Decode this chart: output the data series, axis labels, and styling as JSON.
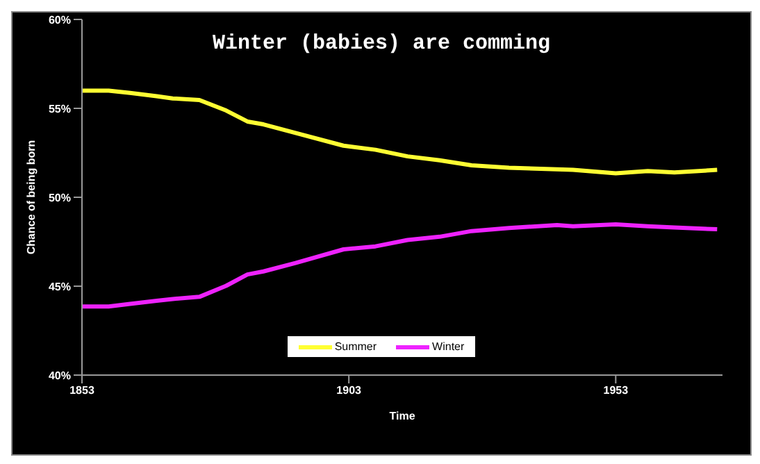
{
  "chart_data": {
    "type": "line",
    "title": "Winter (babies) are comming",
    "xlabel": "Time",
    "ylabel": "Chance of being born",
    "x": [
      1853,
      1858,
      1862,
      1867,
      1870,
      1875,
      1880,
      1884,
      1887,
      1893,
      1902,
      1908,
      1914,
      1920,
      1926,
      1933,
      1942,
      1945,
      1953,
      1959,
      1964,
      1972
    ],
    "series": [
      {
        "name": "Summer",
        "color": "#ffff33",
        "values": [
          56.0,
          56.0,
          55.87,
          55.68,
          55.56,
          55.47,
          54.88,
          54.26,
          54.1,
          53.62,
          52.9,
          52.67,
          52.3,
          52.08,
          51.8,
          51.66,
          51.57,
          51.54,
          51.35,
          51.47,
          51.4,
          51.54
        ]
      },
      {
        "name": "Winter",
        "color": "#ee22ff",
        "values": [
          43.86,
          43.86,
          44.0,
          44.18,
          44.28,
          44.4,
          45.02,
          45.66,
          45.83,
          46.3,
          47.07,
          47.24,
          47.6,
          47.78,
          48.1,
          48.27,
          48.44,
          48.37,
          48.48,
          48.37,
          48.3,
          48.2
        ]
      }
    ],
    "xlim": [
      1853,
      1973
    ],
    "xticks": [
      1853,
      1903,
      1953
    ],
    "ylim": [
      40,
      60
    ],
    "yticks": [
      {
        "value": 40,
        "label": "40%"
      },
      {
        "value": 45,
        "label": "45%"
      },
      {
        "value": 50,
        "label": "50%"
      },
      {
        "value": 55,
        "label": "55%"
      },
      {
        "value": 60,
        "label": "60%"
      }
    ],
    "grid": false,
    "legend": "bottom",
    "marker": "none",
    "line_style": "solid"
  }
}
